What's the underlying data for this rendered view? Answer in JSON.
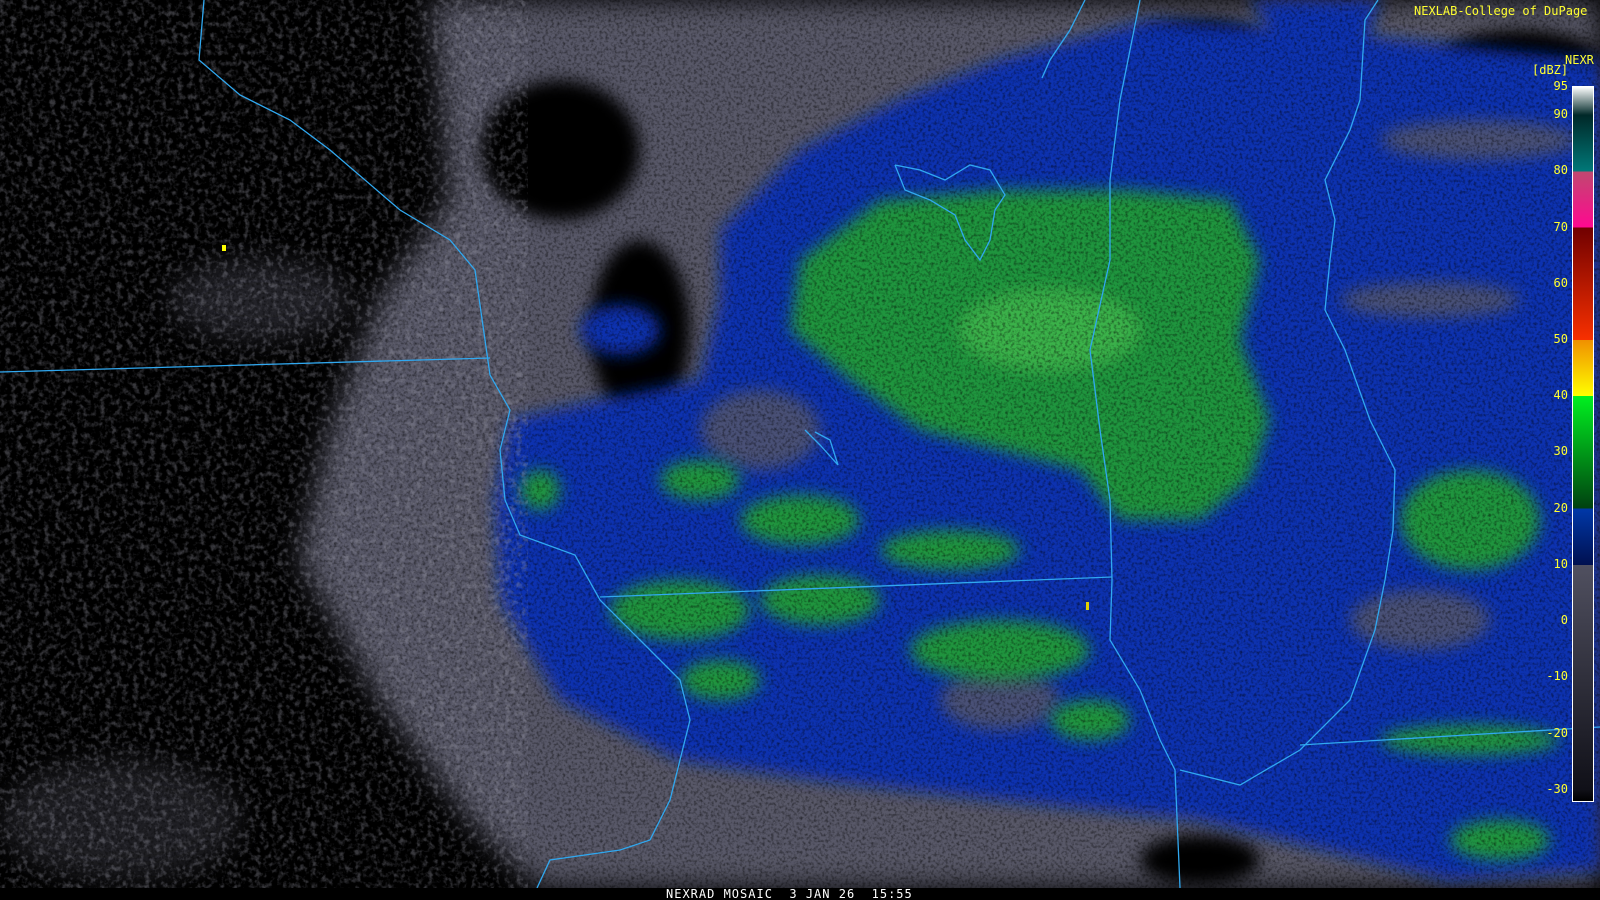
{
  "header": {
    "credit": "NEXLAB-College of DuPage",
    "product": "NEXR",
    "unit": "[dBZ]"
  },
  "legend": {
    "ticks": [
      "95",
      "90",
      "80",
      "70",
      "60",
      "50",
      "40",
      "30",
      "20",
      "10",
      "0",
      "-10",
      "-20",
      "-30"
    ],
    "range": [
      -32,
      95
    ],
    "color_stops": [
      {
        "dbz": 95,
        "color": "#ffffff"
      },
      {
        "dbz": 90,
        "color": "#002828"
      },
      {
        "dbz": 80,
        "color": "#007878"
      },
      {
        "dbz": 80,
        "color": "#c04870"
      },
      {
        "dbz": 70,
        "color": "#ff0890"
      },
      {
        "dbz": 70,
        "color": "#700000"
      },
      {
        "dbz": 50,
        "color": "#f83000"
      },
      {
        "dbz": 50,
        "color": "#f09000"
      },
      {
        "dbz": 40,
        "color": "#ffff00"
      },
      {
        "dbz": 40,
        "color": "#00f020"
      },
      {
        "dbz": 20,
        "color": "#004010"
      },
      {
        "dbz": 20,
        "color": "#0038a8"
      },
      {
        "dbz": 10,
        "color": "#001050"
      },
      {
        "dbz": 10,
        "color": "#505060"
      },
      {
        "dbz": -30,
        "color": "#101018"
      },
      {
        "dbz": -32,
        "color": "#000000"
      }
    ]
  },
  "map": {
    "echo_colors": {
      "clear_air": "#585868",
      "light": "#1030b0",
      "moderate": "#20a030"
    },
    "border_color": "#30a8f0"
  },
  "footer": {
    "caption": "NEXRAD MOSAIC  3 JAN 26  15:55"
  }
}
